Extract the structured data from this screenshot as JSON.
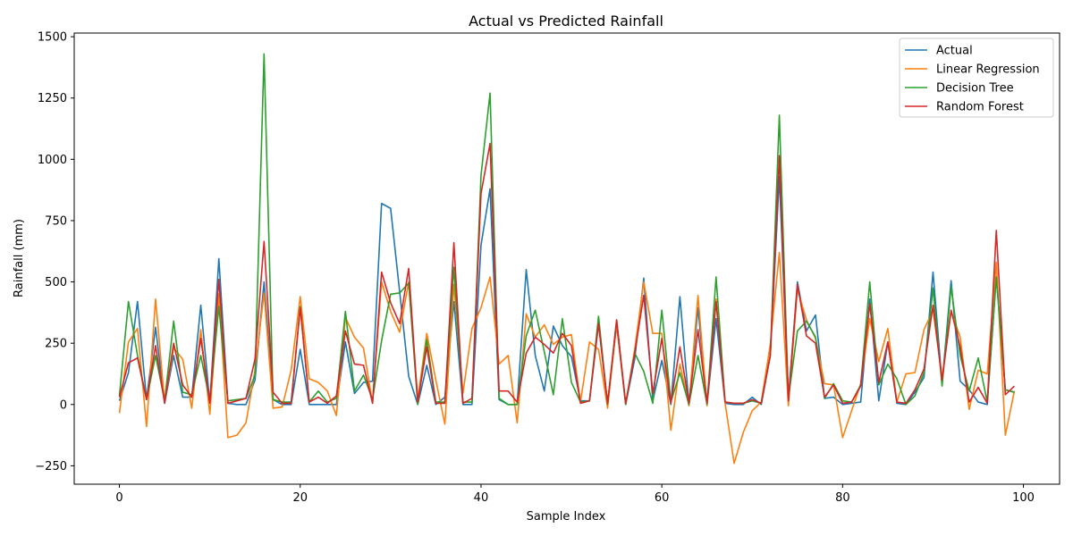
{
  "chart_data": {
    "type": "line",
    "title": "Actual vs Predicted Rainfall",
    "xlabel": "Sample Index",
    "ylabel": "Rainfall (mm)",
    "xlim": [
      -5,
      104
    ],
    "ylim": [
      -325,
      1515
    ],
    "xticks": [
      0,
      20,
      40,
      60,
      80,
      100
    ],
    "yticks": [
      -250,
      0,
      250,
      500,
      750,
      1000,
      1250,
      1500
    ],
    "grid": false,
    "legend_position": "top-right",
    "x": [
      0,
      1,
      2,
      3,
      4,
      5,
      6,
      7,
      8,
      9,
      10,
      11,
      12,
      13,
      14,
      15,
      16,
      17,
      18,
      19,
      20,
      21,
      22,
      23,
      24,
      25,
      26,
      27,
      28,
      29,
      30,
      31,
      32,
      33,
      34,
      35,
      36,
      37,
      38,
      39,
      40,
      41,
      42,
      43,
      44,
      45,
      46,
      47,
      48,
      49,
      50,
      51,
      52,
      53,
      54,
      55,
      56,
      57,
      58,
      59,
      60,
      61,
      62,
      63,
      64,
      65,
      66,
      67,
      68,
      69,
      70,
      71,
      72,
      73,
      74,
      75,
      76,
      77,
      78,
      79,
      80,
      81,
      82,
      83,
      84,
      85,
      86,
      87,
      88,
      89,
      90,
      91,
      92,
      93,
      94,
      95,
      96,
      97,
      98,
      99
    ],
    "series": [
      {
        "name": "Actual",
        "color": "#1f77b4",
        "values": [
          15,
          130,
          420,
          20,
          315,
          5,
          200,
          30,
          30,
          405,
          5,
          595,
          5,
          0,
          0,
          100,
          500,
          20,
          0,
          0,
          225,
          0,
          0,
          0,
          0,
          255,
          45,
          90,
          95,
          820,
          800,
          460,
          115,
          0,
          160,
          0,
          30,
          420,
          0,
          0,
          650,
          880,
          20,
          0,
          0,
          550,
          200,
          55,
          320,
          240,
          195,
          15,
          15,
          330,
          0,
          325,
          0,
          185,
          515,
          15,
          180,
          0,
          440,
          0,
          395,
          0,
          350,
          5,
          0,
          0,
          30,
          0,
          200,
          930,
          20,
          500,
          300,
          365,
          25,
          30,
          0,
          5,
          10,
          430,
          15,
          255,
          5,
          0,
          50,
          110,
          540,
          85,
          505,
          95,
          60,
          10,
          0,
          520,
          60,
          50
        ]
      },
      {
        "name": "Linear Regression",
        "color": "#ff7f0e",
        "values": [
          -35,
          255,
          310,
          -90,
          430,
          10,
          230,
          185,
          -15,
          305,
          -40,
          450,
          -135,
          -125,
          -75,
          140,
          455,
          -15,
          -10,
          140,
          440,
          105,
          90,
          55,
          -45,
          355,
          275,
          230,
          5,
          500,
          380,
          295,
          500,
          20,
          290,
          100,
          -80,
          490,
          45,
          310,
          395,
          520,
          165,
          200,
          -75,
          370,
          275,
          325,
          245,
          275,
          285,
          10,
          255,
          225,
          -15,
          330,
          0,
          225,
          500,
          290,
          290,
          -105,
          165,
          -5,
          445,
          -5,
          430,
          5,
          -240,
          -115,
          -25,
          10,
          245,
          620,
          -5,
          470,
          345,
          270,
          85,
          80,
          -135,
          -25,
          85,
          350,
          175,
          310,
          10,
          125,
          130,
          305,
          385,
          110,
          380,
          275,
          -20,
          140,
          125,
          580,
          -125,
          55
        ]
      },
      {
        "name": "Decision Tree",
        "color": "#2ca02c",
        "values": [
          35,
          420,
          200,
          20,
          200,
          15,
          340,
          50,
          40,
          200,
          15,
          400,
          15,
          20,
          25,
          120,
          1430,
          20,
          10,
          10,
          400,
          10,
          55,
          10,
          25,
          380,
          55,
          120,
          20,
          260,
          450,
          455,
          495,
          0,
          265,
          10,
          10,
          560,
          10,
          10,
          935,
          1270,
          25,
          0,
          0,
          280,
          385,
          215,
          40,
          350,
          90,
          10,
          15,
          360,
          0,
          345,
          0,
          210,
          135,
          5,
          385,
          10,
          130,
          0,
          200,
          0,
          520,
          10,
          5,
          5,
          15,
          5,
          200,
          1180,
          25,
          300,
          340,
          275,
          25,
          85,
          15,
          10,
          80,
          500,
          80,
          165,
          105,
          0,
          35,
          130,
          475,
          75,
          480,
          200,
          55,
          190,
          10,
          520,
          60,
          50
        ]
      },
      {
        "name": "Random Forest",
        "color": "#d62728",
        "values": [
          30,
          170,
          190,
          20,
          240,
          5,
          250,
          80,
          30,
          270,
          5,
          510,
          5,
          15,
          25,
          185,
          665,
          50,
          5,
          5,
          395,
          10,
          30,
          5,
          35,
          300,
          165,
          160,
          5,
          540,
          415,
          330,
          555,
          10,
          235,
          5,
          5,
          660,
          5,
          25,
          860,
          1065,
          55,
          55,
          10,
          210,
          275,
          245,
          210,
          290,
          240,
          5,
          15,
          330,
          5,
          345,
          5,
          210,
          445,
          45,
          270,
          5,
          235,
          5,
          305,
          5,
          420,
          10,
          5,
          5,
          20,
          5,
          200,
          1015,
          15,
          490,
          280,
          250,
          30,
          80,
          5,
          10,
          75,
          410,
          90,
          255,
          10,
          5,
          60,
          145,
          405,
          100,
          385,
          235,
          10,
          70,
          5,
          710,
          40,
          75
        ]
      }
    ]
  }
}
